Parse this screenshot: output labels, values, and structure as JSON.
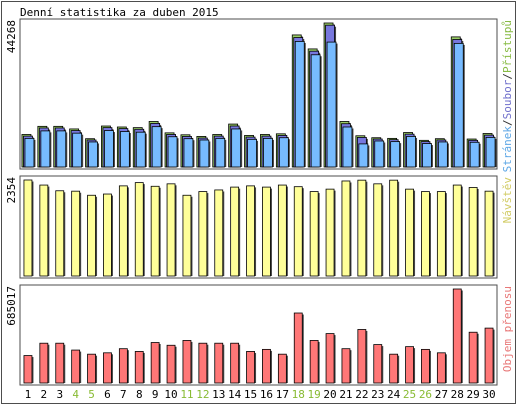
{
  "chart_data": {
    "type": "bar",
    "title": "Denní statistika za duben 2015",
    "categories": [
      "1",
      "2",
      "3",
      "4",
      "5",
      "6",
      "7",
      "8",
      "9",
      "10",
      "11",
      "12",
      "13",
      "14",
      "15",
      "16",
      "17",
      "18",
      "19",
      "20",
      "21",
      "22",
      "23",
      "24",
      "25",
      "26",
      "27",
      "28",
      "29",
      "30"
    ],
    "weekend_days": [
      "4",
      "5",
      "11",
      "12",
      "18",
      "19",
      "25",
      "26"
    ],
    "panels": [
      {
        "id": "hits",
        "ymax_label": "44268",
        "ymax": 44268,
        "legend": [
          {
            "text": "Stránek",
            "color": "#5da7e6"
          },
          {
            "text": "/",
            "color": "#333333"
          },
          {
            "text": "Soubor",
            "color": "#7070cc"
          },
          {
            "text": "/",
            "color": "#333333"
          },
          {
            "text": "Přístupů",
            "color": "#88bb44"
          }
        ],
        "series": [
          {
            "name": "Přístupů",
            "color": "#99cc66",
            "values": [
              10000,
              12500,
              12500,
              11700,
              8700,
              12600,
              12300,
              12100,
              14000,
              10500,
              9900,
              9400,
              10000,
              13200,
              9700,
              10000,
              10200,
              40600,
              36300,
              44268,
              14000,
              9600,
              9000,
              8800,
              10600,
              8200,
              8700,
              40000,
              8600,
              10300
            ]
          },
          {
            "name": "Soubor",
            "color": "#7777dd",
            "values": [
              9500,
              12000,
              12000,
              11200,
              8300,
              12100,
              11800,
              11600,
              13400,
              10000,
              9400,
              8900,
              9500,
              12600,
              9200,
              9500,
              9700,
              39800,
              35600,
              43600,
              13300,
              9100,
              8600,
              8400,
              10100,
              7800,
              8300,
              39200,
              8200,
              9800
            ]
          },
          {
            "name": "Stránek",
            "color": "#77bbff",
            "values": [
              8800,
              11100,
              11100,
              10400,
              7700,
              11200,
              10900,
              10700,
              12400,
              9300,
              8700,
              8300,
              8800,
              11700,
              8500,
              8800,
              9000,
              38600,
              34500,
              38400,
              12300,
              7100,
              8000,
              7800,
              9400,
              7200,
              7700,
              38000,
              7600,
              9100
            ]
          }
        ]
      },
      {
        "id": "visits",
        "ymax_label": "2354",
        "ymax": 2354,
        "legend": [
          {
            "text": "Návštěv",
            "color": "#d2cc66"
          }
        ],
        "series": [
          {
            "name": "Návštěv",
            "color": "#ffff99",
            "values": [
              2354,
              2230,
              2090,
              2080,
              1980,
              2010,
              2210,
              2290,
              2200,
              2260,
              1980,
              2070,
              2110,
              2180,
              2210,
              2180,
              2230,
              2190,
              2070,
              2130,
              2330,
              2350,
              2260,
              2350,
              2130,
              2070,
              2070,
              2230,
              2170,
              2080
            ]
          }
        ]
      },
      {
        "id": "traffic",
        "ymax_label": "685017",
        "ymax": 685017,
        "legend": [
          {
            "text": "Objem přenosu",
            "color": "#e87878"
          }
        ],
        "series": [
          {
            "name": "Objem přenosu",
            "color": "#ff7777",
            "values": [
              200000,
              290000,
              290000,
              240000,
              210000,
              220000,
              250000,
              230000,
              295000,
              275000,
              310000,
              290000,
              290000,
              290000,
              230000,
              245000,
              210000,
              510000,
              310000,
              360000,
              250000,
              390000,
              280000,
              210000,
              265000,
              245000,
              220000,
              685017,
              370000,
              400000
            ]
          }
        ]
      }
    ],
    "colors": {
      "frame": "#4d4d4d",
      "bar_outline": "#000000",
      "bar_shadow": "#444444",
      "axis_text": "#000000",
      "weekend_text": "#88bb33"
    }
  }
}
